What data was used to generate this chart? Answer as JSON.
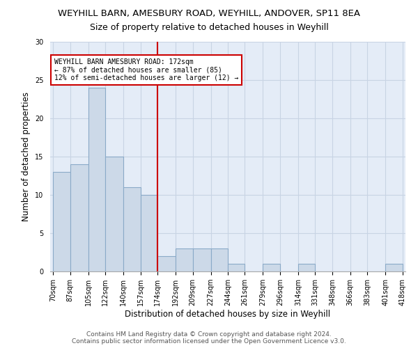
{
  "title1": "WEYHILL BARN, AMESBURY ROAD, WEYHILL, ANDOVER, SP11 8EA",
  "title2": "Size of property relative to detached houses in Weyhill",
  "xlabel": "Distribution of detached houses by size in Weyhill",
  "ylabel": "Number of detached properties",
  "bar_color": "#ccd9e8",
  "bar_edge_color": "#8aaac8",
  "vline_color": "#cc0000",
  "vline_x": 174,
  "annotation_text": "WEYHILL BARN AMESBURY ROAD: 172sqm\n← 87% of detached houses are smaller (85)\n12% of semi-detached houses are larger (12) →",
  "annotation_bbox_color": "white",
  "annotation_bbox_edge": "#cc0000",
  "bins": [
    70,
    87,
    105,
    122,
    140,
    157,
    174,
    192,
    209,
    227,
    244,
    261,
    279,
    296,
    314,
    331,
    348,
    366,
    383,
    401,
    418
  ],
  "counts": [
    13,
    14,
    24,
    15,
    11,
    10,
    2,
    3,
    3,
    3,
    1,
    0,
    1,
    0,
    1,
    0,
    0,
    0,
    0,
    1
  ],
  "ylim": [
    0,
    30
  ],
  "yticks": [
    0,
    5,
    10,
    15,
    20,
    25,
    30
  ],
  "grid_color": "#c8d4e4",
  "background_color": "#e4ecf7",
  "footer1": "Contains HM Land Registry data © Crown copyright and database right 2024.",
  "footer2": "Contains public sector information licensed under the Open Government Licence v3.0.",
  "title1_fontsize": 9.5,
  "title2_fontsize": 9,
  "xlabel_fontsize": 8.5,
  "ylabel_fontsize": 8.5,
  "tick_fontsize": 7,
  "footer_fontsize": 6.5,
  "annot_fontsize": 7
}
